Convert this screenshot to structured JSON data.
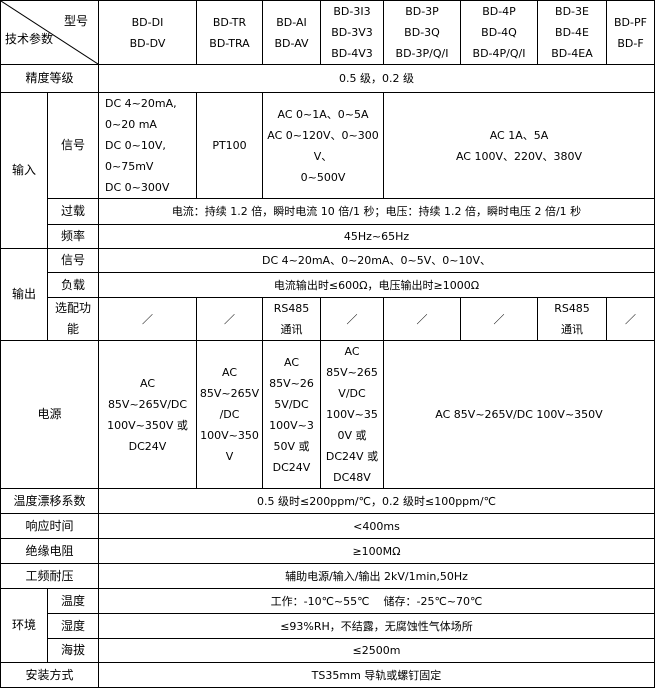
{
  "header": {
    "model_label": "型号",
    "param_label": "技术参数",
    "models": [
      [
        "BD-DI",
        "BD-DV"
      ],
      [
        "BD-TR",
        "BD-TRA"
      ],
      [
        "BD-AI",
        "BD-AV"
      ],
      [
        "BD-3I3",
        "BD-3V3",
        "BD-4V3"
      ],
      [
        "BD-3P",
        "BD-3Q",
        "BD-3P/Q/I"
      ],
      [
        "BD-4P",
        "BD-4Q",
        "BD-4P/Q/I"
      ],
      [
        "BD-3E",
        "BD-4E",
        "BD-4EA"
      ],
      [
        "BD-PF",
        "BD-F"
      ]
    ]
  },
  "accuracy": {
    "label": "精度等级",
    "value": "0.5 级，0.2 级"
  },
  "input": {
    "label": "输入",
    "signal_label": "信号",
    "signal_dc": [
      "DC 4~20mA,",
      "0~20 mA",
      "DC 0~10V,",
      "0~75mV",
      "DC 0~300V"
    ],
    "signal_pt": "PT100",
    "signal_ac": [
      "AC 0~1A、0~5A",
      "AC 0~120V、0~300V、",
      "0~500V"
    ],
    "signal_power": [
      "AC 1A、5A",
      "AC 100V、220V、380V"
    ],
    "overload_label": "过载",
    "overload": "电流：持续 1.2 倍，瞬时电流 10 倍/1 秒；电压：持续 1.2 倍，瞬时电压 2 倍/1 秒",
    "freq_label": "频率",
    "freq": "45Hz~65Hz"
  },
  "output": {
    "label": "输出",
    "signal_label": "信号",
    "signal": "DC 4~20mA、0~20mA、0~5V、0~10V、",
    "load_label": "负载",
    "load": "电流输出时≤600Ω，电压输出时≥1000Ω",
    "option_label": [
      "选配功",
      "能"
    ],
    "options": [
      "／",
      "／",
      [
        "RS485",
        "通讯"
      ],
      "／",
      "／",
      "／",
      [
        "RS485",
        "通讯"
      ],
      "／"
    ]
  },
  "power": {
    "label": "电源",
    "c1": [
      "AC",
      "85V~265V/DC",
      "100V~350V 或",
      "DC24V"
    ],
    "c2": [
      "AC",
      "85V~265V",
      "/DC",
      "100V~350",
      "V"
    ],
    "c3": [
      "AC",
      "85V~26",
      "5V/DC",
      "100V~3",
      "50V 或",
      "DC24V"
    ],
    "c4": [
      "AC",
      "85V~265",
      "V/DC",
      "100V~35",
      "0V 或",
      "DC24V 或",
      "DC48V"
    ],
    "rest": "AC 85V~265V/DC 100V~350V"
  },
  "drift": {
    "label": "温度漂移系数",
    "value": "0.5 级时≤200ppm/℃，0.2 级时≤100ppm/℃"
  },
  "response": {
    "label": "响应时间",
    "value": "<400ms"
  },
  "insulation": {
    "label": "绝缘电阻",
    "value": "≥100MΩ"
  },
  "withstand": {
    "label": "工频耐压",
    "value": "辅助电源/输入/输出 2kV/1min,50Hz"
  },
  "environment": {
    "label": "环境",
    "temp_label": "温度",
    "temp": "工作：-10℃~55℃    储存：-25℃~70℃",
    "humidity_label": "湿度",
    "humidity": "≤93%RH，不结露，无腐蚀性气体场所",
    "altitude_label": "海拔",
    "altitude": "≤2500m"
  },
  "mounting": {
    "label": "安装方式",
    "value": "TS35mm 导轨或螺钉固定"
  }
}
